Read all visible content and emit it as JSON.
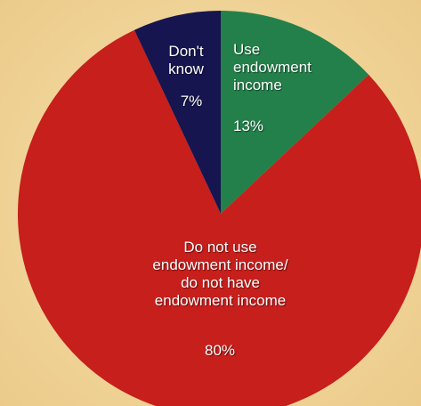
{
  "chart_data": {
    "type": "pie",
    "categories": [
      "Use endowment income",
      "Do not use endowment income/ do not have endowment income",
      "Don't know"
    ],
    "values": [
      13,
      80,
      7
    ],
    "value_labels": [
      "13%",
      "80%",
      "7%"
    ],
    "colors": [
      "#23804a",
      "#c61f1c",
      "#16154f"
    ]
  }
}
